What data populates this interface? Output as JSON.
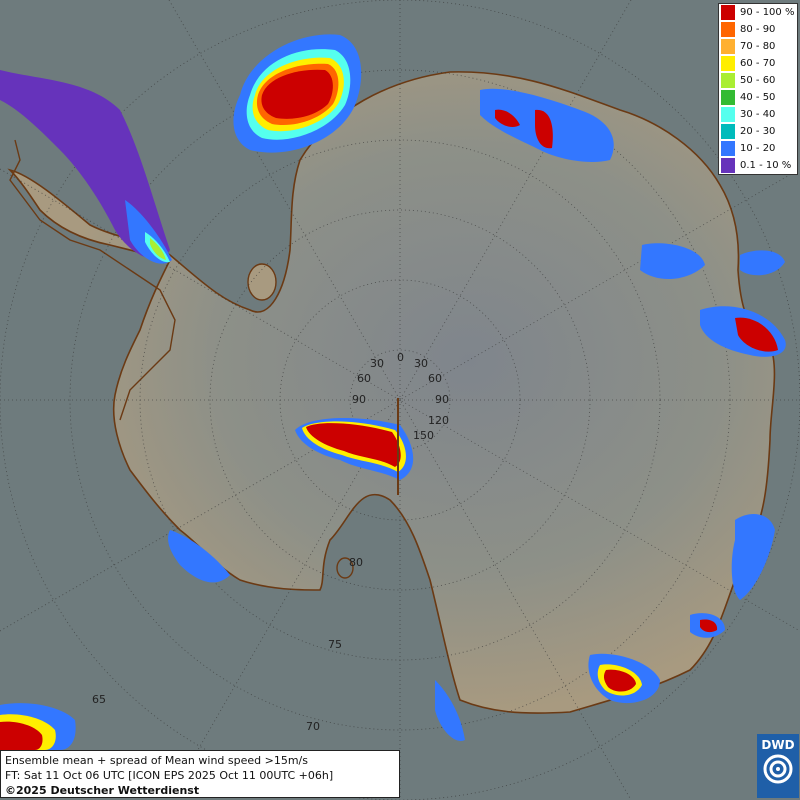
{
  "legend": {
    "items": [
      {
        "label": "90 - 100 %",
        "color": "#cc0000"
      },
      {
        "label": "80 - 90",
        "color": "#ff6600"
      },
      {
        "label": "70 - 80",
        "color": "#ffb030"
      },
      {
        "label": "60 - 70",
        "color": "#ffee00"
      },
      {
        "label": "50 - 60",
        "color": "#aaee33"
      },
      {
        "label": "40 - 50",
        "color": "#33bb33"
      },
      {
        "label": "30 - 40",
        "color": "#55ffee"
      },
      {
        "label": "20 - 30",
        "color": "#00bbbb"
      },
      {
        "label": "10 - 20",
        "color": "#3377ff"
      },
      {
        "label": "0.1 - 10 %",
        "color": "#6633bb"
      }
    ]
  },
  "info": {
    "line1": "Ensemble mean + spread of Mean wind speed >15m/s",
    "line2": "FT: Sat 11 Oct 06 UTC [ICON EPS 2025 Oct 11 00UTC +06h]",
    "line3": "©2025 Deutscher Wetterdienst"
  },
  "logo": {
    "text": "DWD"
  },
  "grid": {
    "lon_labels": [
      "0",
      "30",
      "30",
      "60",
      "60",
      "90",
      "90",
      "120",
      "150"
    ],
    "lat_labels": [
      "80",
      "75",
      "70",
      "65"
    ]
  },
  "colors": {
    "ocean": "#6e7b7d",
    "land": "#a89a80",
    "plateau": "#868f8a",
    "coast": "#6b3a14"
  }
}
